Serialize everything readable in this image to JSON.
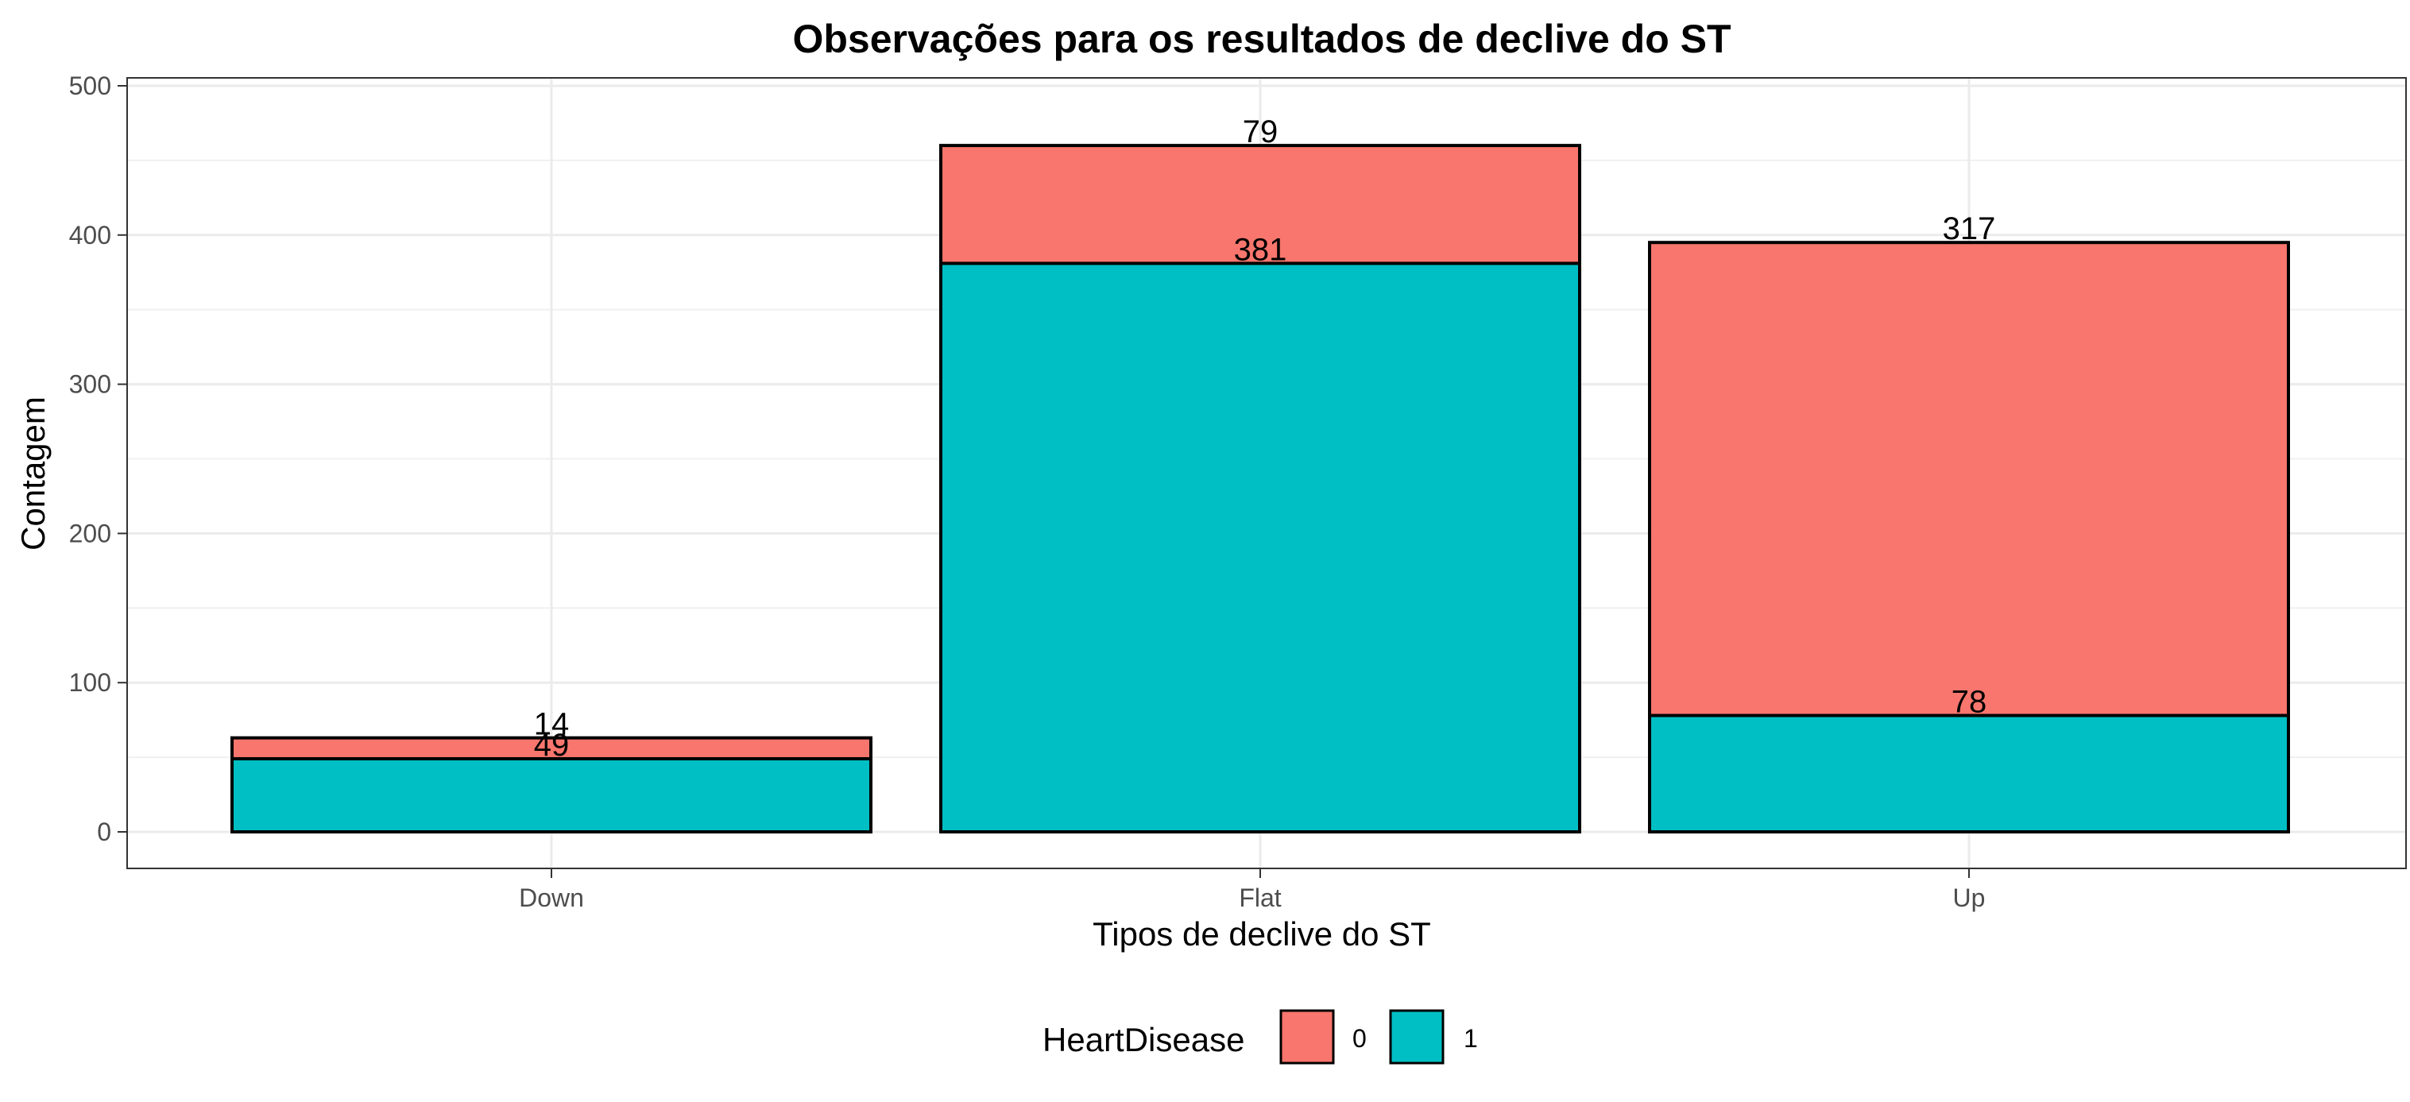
{
  "chart_data": {
    "type": "bar",
    "stacked": true,
    "title": "Observações para os resultados de declive do ST",
    "xlabel": "Tipos de declive do ST",
    "ylabel": "Contagem",
    "categories": [
      "Down",
      "Flat",
      "Up"
    ],
    "ylim": [
      0,
      500
    ],
    "yticks": [
      0,
      100,
      200,
      300,
      400,
      500
    ],
    "grid": true,
    "legend": {
      "title": "HeartDisease",
      "placement": "bottom",
      "entries": [
        "0",
        "1"
      ]
    },
    "series": [
      {
        "name": "1",
        "values": [
          49,
          381,
          78
        ],
        "color": "#00BFC4"
      },
      {
        "name": "0",
        "values": [
          14,
          79,
          317
        ],
        "color": "#F8766D"
      }
    ]
  }
}
